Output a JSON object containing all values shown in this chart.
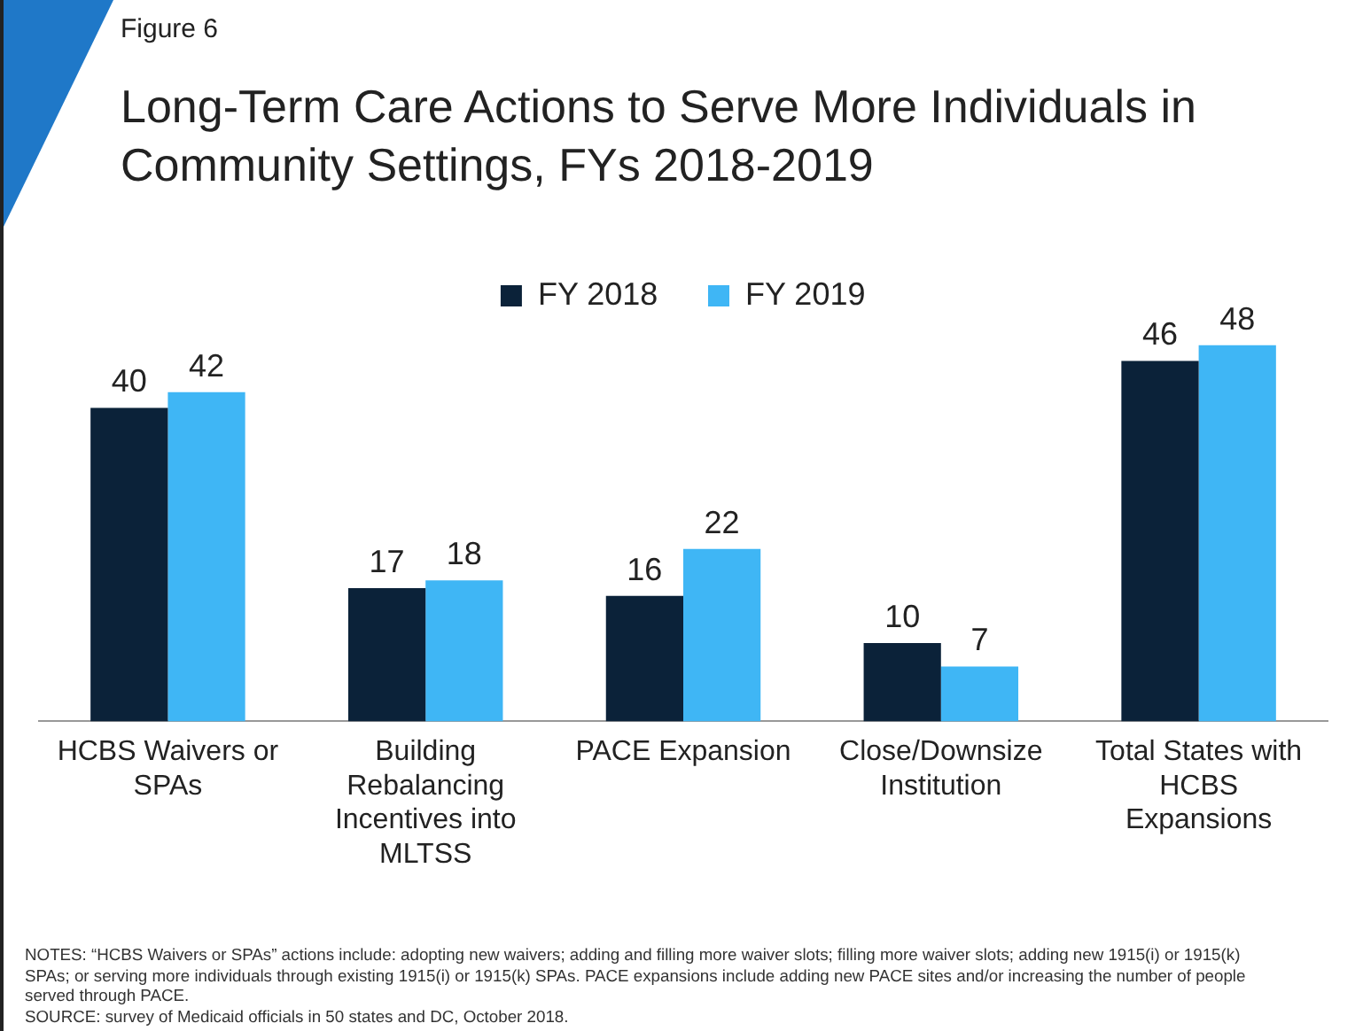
{
  "chart_data": {
    "type": "bar",
    "title": "Long-Term Care Actions to Serve More Individuals in Community Settings, FYs 2018-2019",
    "subtitle": "Figure 6",
    "categories": [
      "HCBS Waivers or SPAs",
      "Building Rebalancing Incentives into MLTSS",
      "PACE Expansion",
      "Close/Downsize Institution",
      "Total States with HCBS Expansions"
    ],
    "series": [
      {
        "name": "FY 2018",
        "color": "#0b2239",
        "values": [
          40,
          17,
          16,
          10,
          46
        ]
      },
      {
        "name": "FY 2019",
        "color": "#3fb6f5",
        "values": [
          42,
          18,
          22,
          7,
          48
        ]
      }
    ],
    "data_labels": true,
    "grid": false,
    "legend": "top",
    "annotations": [
      "NOTES: “HCBS Waivers or SPAs” actions include: adopting new waivers; adding and filling more waiver slots; filling more waiver slots; adding new 1915(i) or 1915(k) SPAs; or serving more individuals through existing 1915(i) or 1915(k) SPAs. PACE expansions include adding new PACE sites and/or increasing the number of people served through PACE.",
      "SOURCE: survey of Medicaid officials in 50 states and DC, October 2018."
    ]
  }
}
